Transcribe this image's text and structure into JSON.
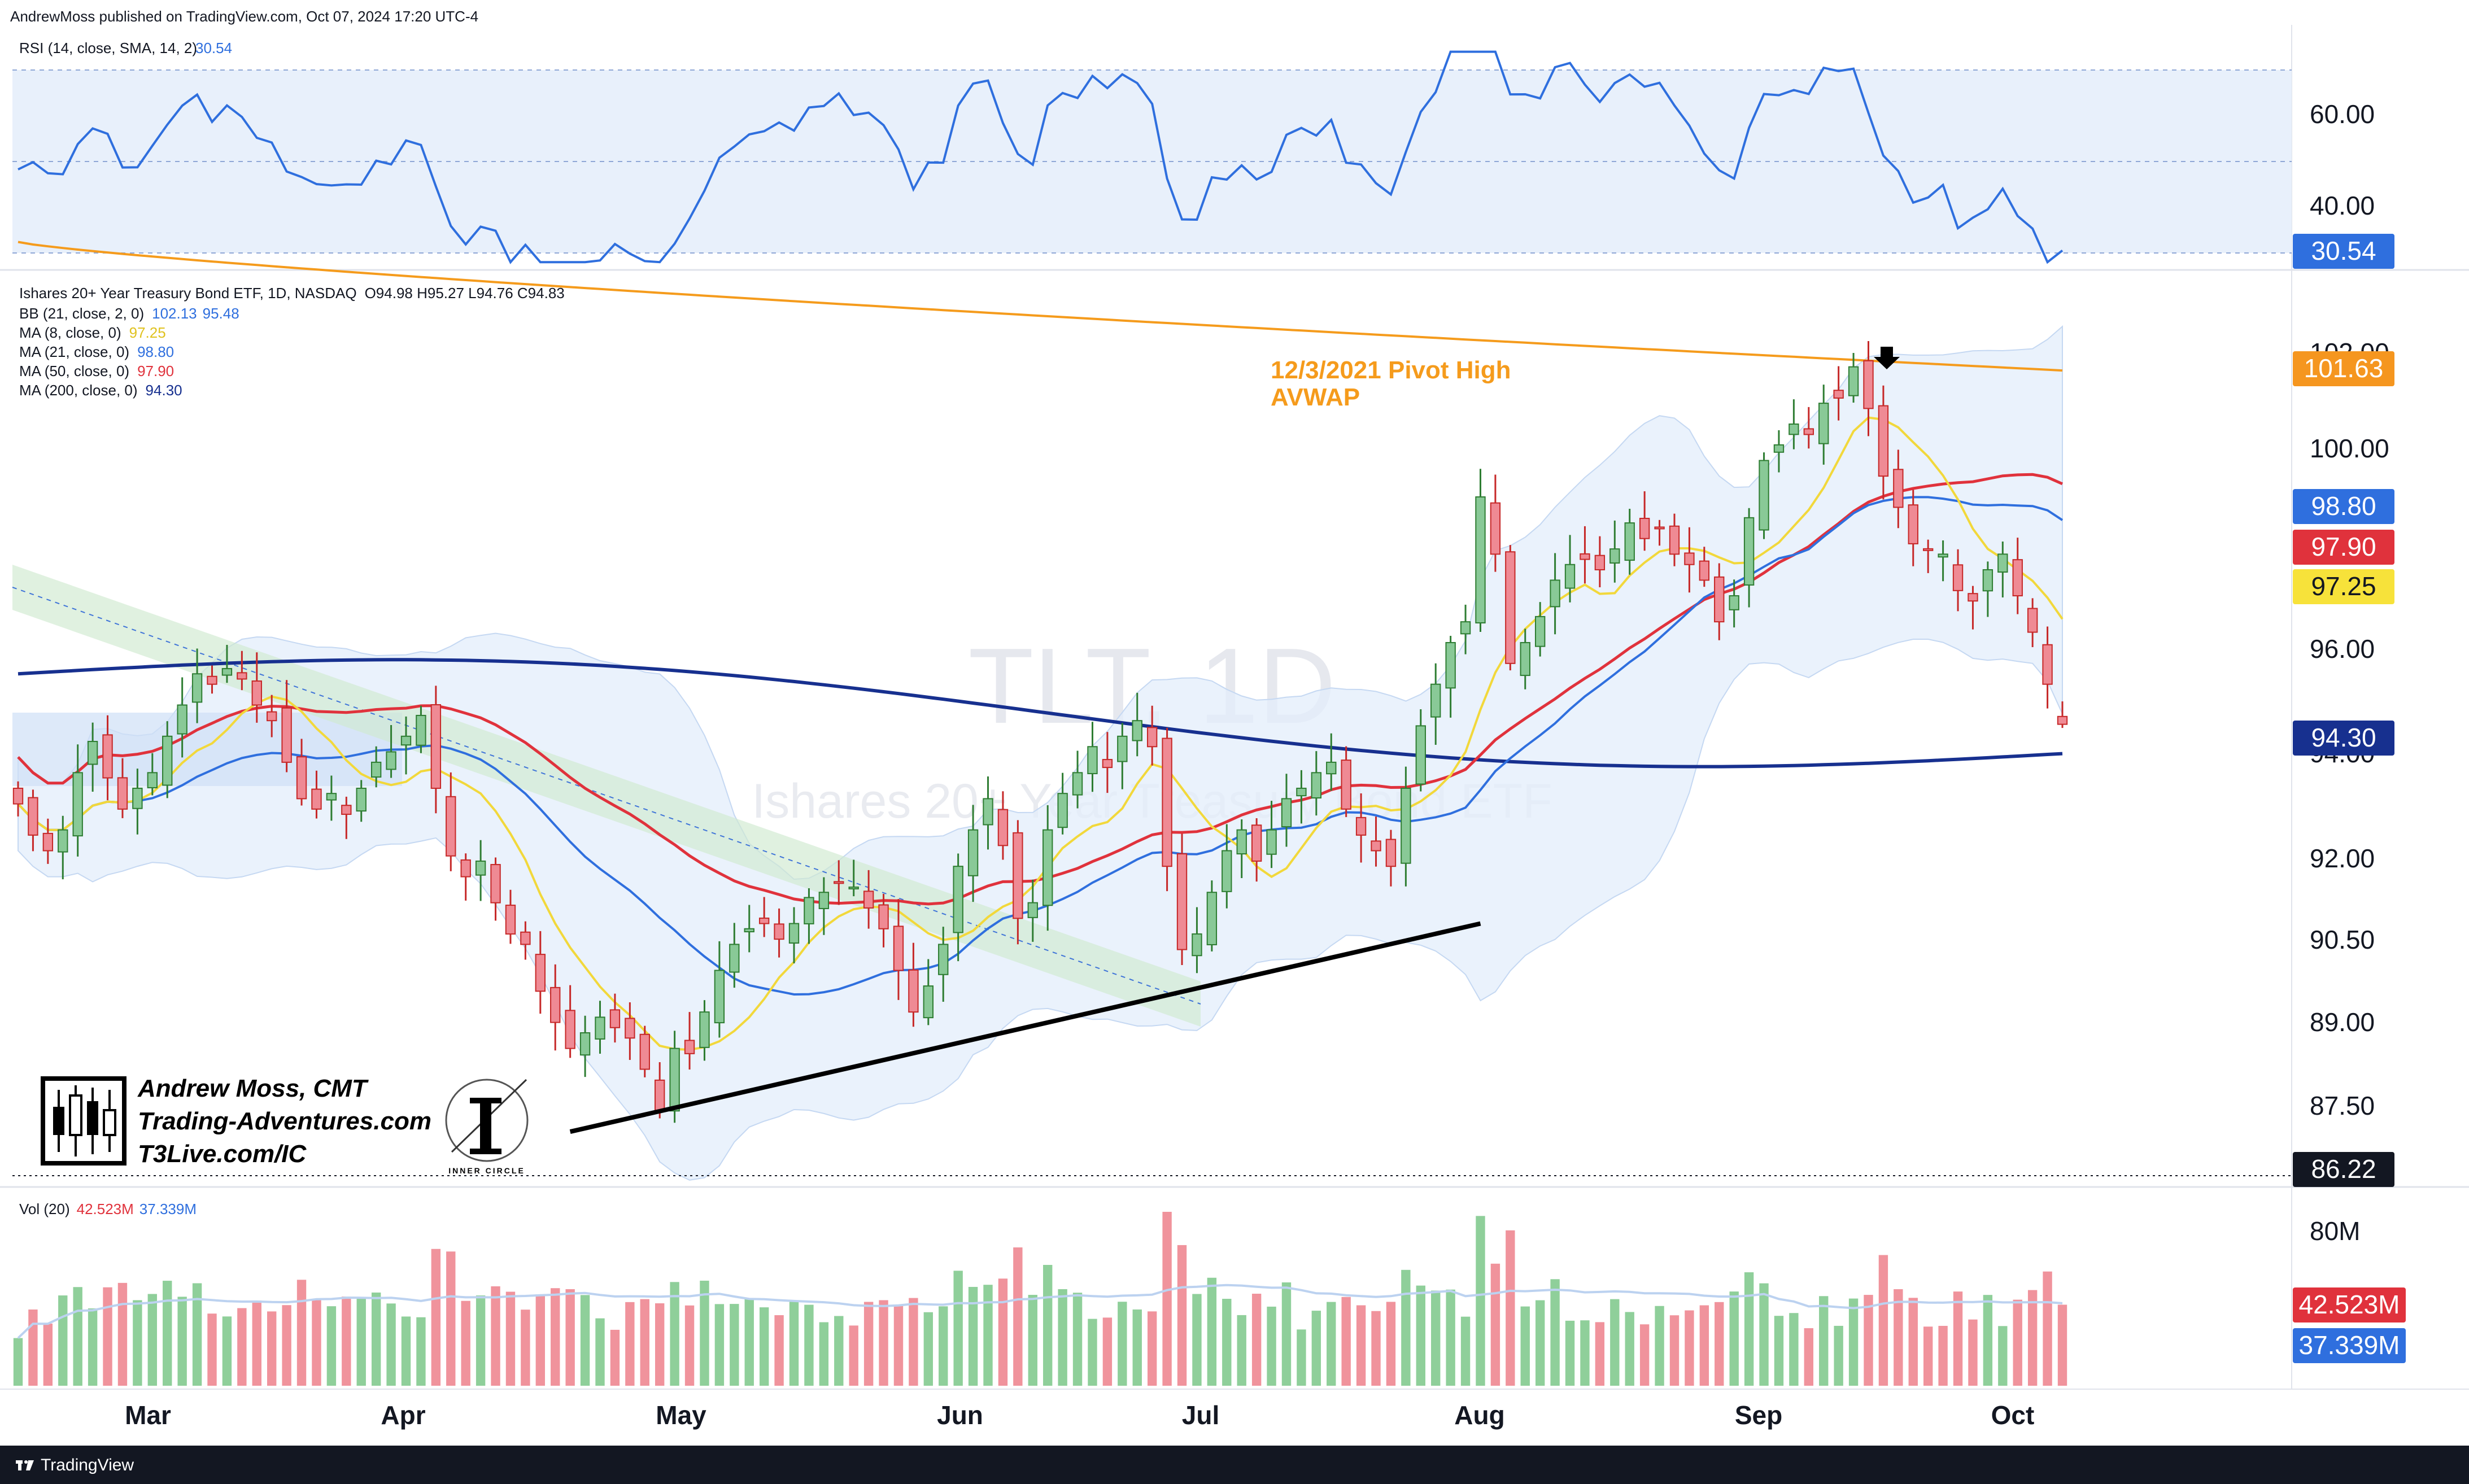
{
  "header": {
    "published": "AndrewMoss published on TradingView.com, Oct 07, 2024 17:20 UTC-4"
  },
  "footer": {
    "brand": "TradingView"
  },
  "colors": {
    "up": "#89c997",
    "up_border": "#2e7d32",
    "down": "#ef8a94",
    "down_border": "#c62828",
    "rsi": "#2f6fde",
    "avwap": "#f59b1c",
    "bb": "#2f6fde",
    "ma8": "#f2d83b",
    "ma21": "#2f6fde",
    "ma50": "#e0323c",
    "ma200": "#17308f",
    "vol_up": "#8fcf9a",
    "vol_down": "#f0939c"
  },
  "rsi_pane": {
    "legend_name": "RSI (14, close, SMA, 14, 2)",
    "legend_value": "30.54",
    "axis_labels": [
      "60.00",
      "40.00"
    ],
    "last_label": "30.54"
  },
  "price_pane": {
    "watermark_symbol": "TLT, 1D",
    "watermark_name": "Ishares 20+ Year Treasury Bond ETF",
    "legend": {
      "title": "Ishares 20+ Year Treasury Bond ETF, 1D, NASDAQ",
      "ohlc": "O94.98  H95.27  L94.76  C94.83",
      "rows": [
        {
          "name": "BB (21, close, 2, 0)",
          "v1": "102.13",
          "v2": "95.48"
        },
        {
          "name": "MA (8, close, 0)",
          "v1": "97.25",
          "v2": ""
        },
        {
          "name": "MA (21, close, 0)",
          "v1": "98.80",
          "v2": ""
        },
        {
          "name": "MA (50, close, 0)",
          "v1": "97.90",
          "v2": ""
        },
        {
          "name": "MA (200, close, 0)",
          "v1": "94.30",
          "v2": ""
        }
      ]
    },
    "annotation_line1": "12/3/2021 Pivot High",
    "annotation_line2": "AVWAP",
    "axis_labels": [
      "102.00",
      "100.00",
      "96.00",
      "94.00",
      "92.00",
      "90.50",
      "89.00",
      "87.50"
    ],
    "badges": [
      {
        "text": "101.63",
        "color": "#f5961f"
      },
      {
        "text": "98.80",
        "color": "#2f6fde"
      },
      {
        "text": "97.90",
        "color": "#e0323c"
      },
      {
        "text": "97.25",
        "color": "#f7e23a"
      },
      {
        "text": "94.30",
        "color": "#17308f"
      },
      {
        "text": "86.22",
        "color": "#131722"
      }
    ]
  },
  "branding": {
    "name": "Andrew Moss, CMT",
    "site1": "Trading-Adventures.com",
    "site2": "T3Live.com/IC",
    "circle_text": "INNER CIRCLE"
  },
  "volume_pane": {
    "legend_name": "Vol (20)",
    "legend_v1": "42.523M",
    "legend_v2": "37.339M",
    "axis_label": "80M",
    "badge_current": "42.523M",
    "badge_avg": "37.339M"
  },
  "x_axis": {
    "months": [
      "Mar",
      "Apr",
      "May",
      "Jun",
      "Jul",
      "Aug",
      "Sep",
      "Oct"
    ]
  },
  "chart_data": {
    "type": "candlestick",
    "symbol": "TLT",
    "timeframe": "1D",
    "price_range": [
      86.22,
      102.6
    ],
    "last_bar": {
      "open": 94.98,
      "high": 95.27,
      "low": 94.76,
      "close": 94.83
    },
    "closes": [
      93.3,
      92.7,
      92.4,
      92.8,
      93.9,
      94.5,
      93.8,
      93.2,
      93.6,
      93.9,
      94.6,
      95.2,
      95.8,
      95.6,
      95.9,
      95.7,
      95.2,
      94.9,
      94.1,
      93.4,
      93.2,
      93.5,
      93.1,
      93.6,
      94.1,
      94.3,
      94.6,
      95.0,
      93.6,
      92.3,
      91.9,
      92.2,
      91.4,
      90.8,
      90.6,
      89.7,
      89.1,
      88.6,
      88.9,
      89.2,
      89.0,
      88.8,
      88.2,
      87.4,
      88.6,
      88.5,
      89.3,
      90.1,
      90.6,
      90.9,
      91.0,
      90.7,
      91.0,
      91.5,
      91.6,
      91.8,
      91.7,
      91.3,
      90.9,
      90.1,
      89.3,
      89.8,
      90.6,
      92.1,
      92.8,
      93.4,
      92.5,
      91.1,
      91.4,
      92.8,
      93.5,
      93.9,
      94.4,
      94.0,
      94.6,
      94.9,
      94.4,
      92.1,
      90.5,
      90.8,
      91.6,
      92.4,
      92.8,
      92.2,
      92.8,
      93.4,
      93.6,
      93.9,
      94.1,
      93.2,
      92.7,
      92.4,
      92.1,
      93.6,
      94.8,
      95.6,
      96.4,
      96.8,
      99.2,
      98.1,
      96.0,
      96.4,
      96.9,
      97.6,
      97.9,
      98.0,
      97.8,
      98.2,
      98.7,
      98.4,
      98.6,
      98.1,
      97.9,
      97.6,
      96.8,
      97.3,
      98.8,
      99.9,
      100.2,
      100.6,
      100.4,
      101.0,
      101.1,
      101.7,
      100.9,
      99.6,
      99.0,
      98.3,
      98.2,
      98.1,
      97.4,
      97.2,
      97.8,
      98.1,
      97.3,
      96.6,
      95.6,
      94.83
    ],
    "ma200_start_end": [
      95.8,
      94.3
    ],
    "avwap_start_end": [
      104.1,
      101.63
    ],
    "trendline": {
      "from": [
        87.0,
        "Apr 23"
      ],
      "to": [
        91.0,
        "Aug 1"
      ]
    },
    "rsi_last": 30.54,
    "rsi_levels": [
      70,
      50,
      30
    ],
    "volume_last": "42.523M",
    "volume_avg": "37.339M"
  }
}
